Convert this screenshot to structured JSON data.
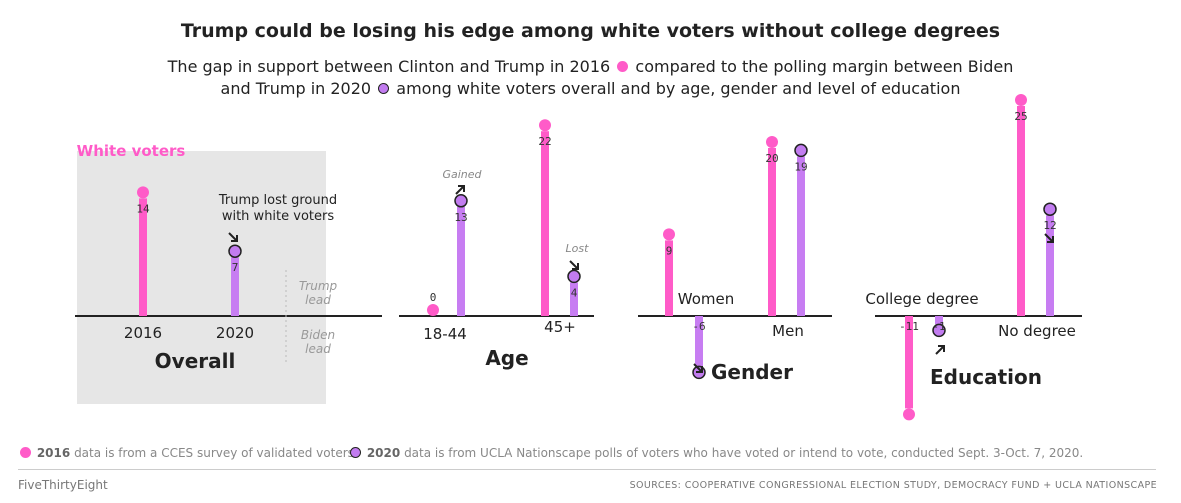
{
  "title": "Trump could be losing his edge among white voters without college degrees",
  "subtitle": {
    "line1_before": "The gap in support between Clinton and Trump in 2016",
    "line1_after": "compared to the polling margin between Biden",
    "line2_before": "and Trump in 2020",
    "line2_after": "among white voters overall and by age, gender and level of education"
  },
  "colors": {
    "y2016": "#ff5bc8",
    "y2020": "#c27cf0",
    "bar2016": "#ff5bc8",
    "bar2020": "#c77df2",
    "highlight_box": "#e6e6e6",
    "highlight_label": "#ff5bc8"
  },
  "chart_data": [
    {
      "type": "bar",
      "panel": "Overall",
      "highlight_label": "White voters",
      "categories": [
        "2016",
        "2020"
      ],
      "series": [
        {
          "name": "2016",
          "values": [
            14,
            null
          ]
        },
        {
          "name": "2020",
          "values": [
            null,
            7
          ]
        }
      ],
      "annotations": [
        "Trump lost ground with white voters"
      ],
      "axis_labels": {
        "above": "Trump lead",
        "below": "Biden lead"
      }
    },
    {
      "type": "bar",
      "panel": "Age",
      "categories": [
        "18-44",
        "45+"
      ],
      "series": [
        {
          "name": "2016",
          "values": [
            0,
            22
          ]
        },
        {
          "name": "2020",
          "values": [
            13,
            4
          ]
        }
      ],
      "annotations": [
        "Gained",
        "Lost"
      ]
    },
    {
      "type": "bar",
      "panel": "Gender",
      "categories": [
        "Women",
        "Men"
      ],
      "series": [
        {
          "name": "2016",
          "values": [
            9,
            20
          ]
        },
        {
          "name": "2020",
          "values": [
            -6,
            19
          ]
        }
      ]
    },
    {
      "type": "bar",
      "panel": "Education",
      "categories": [
        "College degree",
        "No degree"
      ],
      "series": [
        {
          "name": "2016",
          "values": [
            -11,
            25
          ]
        },
        {
          "name": "2020",
          "values": [
            -1,
            12
          ]
        }
      ]
    }
  ],
  "notes": {
    "year1": "2016",
    "note1": "data is from a CCES survey of validated voters.",
    "year2": "2020",
    "note2": "data is from UCLA Nationscape polls of voters who have voted or intend to vote, conducted Sept. 3-Oct. 7, 2020."
  },
  "brand": "FiveThirtyEight",
  "sources": "SOURCES: COOPERATIVE CONGRESSIONAL ELECTION STUDY, DEMOCRACY FUND + UCLA NATIONSCAPE"
}
